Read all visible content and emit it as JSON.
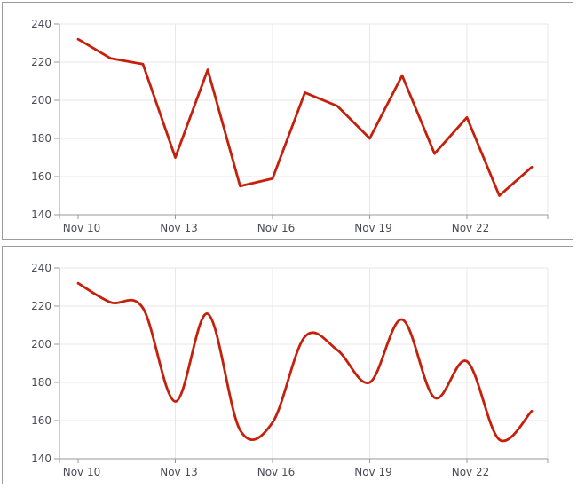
{
  "colors": {
    "line": "#c5200b",
    "grid": "#e7e7e7",
    "axis": "#999999",
    "tick_label": "#4b4b57",
    "panel_border": "#9b9b9b",
    "background": "#ffffff"
  },
  "panels": [
    {
      "name": "linear-line-chart"
    },
    {
      "name": "smoothed-line-chart"
    }
  ],
  "chart_data": [
    {
      "type": "line",
      "curve": "linear",
      "title": "",
      "xlabel": "",
      "ylabel": "",
      "categories": [
        "Nov 10",
        "Nov 11",
        "Nov 12",
        "Nov 13",
        "Nov 14",
        "Nov 15",
        "Nov 16",
        "Nov 17",
        "Nov 18",
        "Nov 19",
        "Nov 20",
        "Nov 21",
        "Nov 22",
        "Nov 23",
        "Nov 24"
      ],
      "values": [
        232,
        222,
        219,
        170,
        216,
        155,
        159,
        204,
        197,
        180,
        213,
        172,
        191,
        150,
        165
      ],
      "ylim": [
        140,
        240
      ],
      "y_ticks": [
        140,
        160,
        180,
        200,
        220,
        240
      ],
      "x_tick_indices": [
        0,
        3,
        6,
        9,
        12
      ],
      "x_tick_labels": [
        "Nov 10",
        "Nov 13",
        "Nov 16",
        "Nov 19",
        "Nov 22"
      ],
      "grid": true,
      "legend": "none",
      "series_color": "#c5200b"
    },
    {
      "type": "line",
      "curve": "smooth",
      "title": "",
      "xlabel": "",
      "ylabel": "",
      "categories": [
        "Nov 10",
        "Nov 11",
        "Nov 12",
        "Nov 13",
        "Nov 14",
        "Nov 15",
        "Nov 16",
        "Nov 17",
        "Nov 18",
        "Nov 19",
        "Nov 20",
        "Nov 21",
        "Nov 22",
        "Nov 23",
        "Nov 24"
      ],
      "values": [
        232,
        222,
        219,
        170,
        216,
        155,
        159,
        204,
        197,
        180,
        213,
        172,
        191,
        150,
        165
      ],
      "ylim": [
        140,
        240
      ],
      "y_ticks": [
        140,
        160,
        180,
        200,
        220,
        240
      ],
      "x_tick_indices": [
        0,
        3,
        6,
        9,
        12
      ],
      "x_tick_labels": [
        "Nov 10",
        "Nov 13",
        "Nov 16",
        "Nov 19",
        "Nov 22"
      ],
      "grid": true,
      "legend": "none",
      "series_color": "#c5200b"
    }
  ]
}
